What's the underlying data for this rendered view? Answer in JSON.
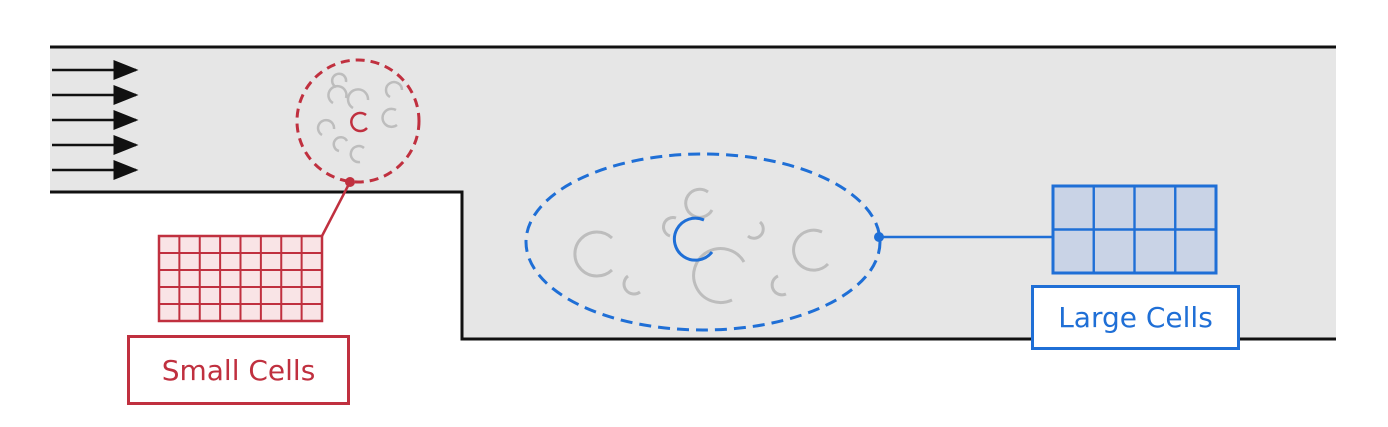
{
  "labels": {
    "small_cells": "Small Cells",
    "large_cells": "Large Cells"
  },
  "colors": {
    "small": "#c0303f",
    "large": "#1f6fd6",
    "channel_fill": "#e6e6e6",
    "wall": "#111111",
    "particles": "#b8b8b8"
  },
  "flow_arrows": 5,
  "small_grid": {
    "rows": 5,
    "cols": 8
  },
  "large_grid": {
    "rows": 2,
    "cols": 4
  }
}
